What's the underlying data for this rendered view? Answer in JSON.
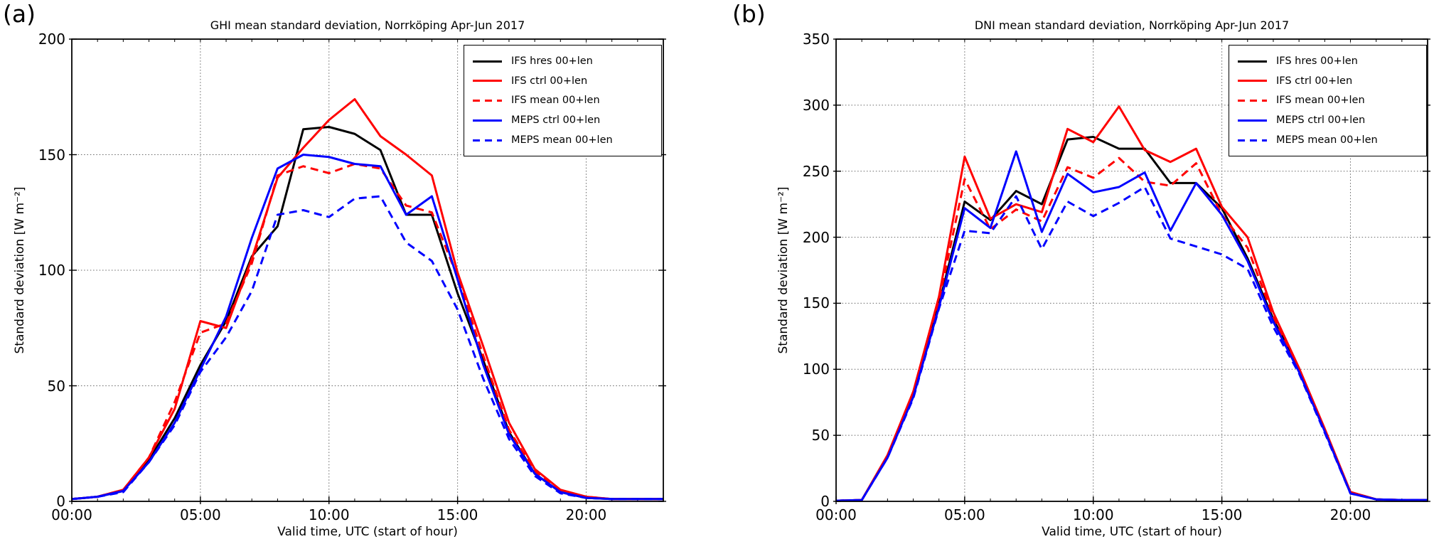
{
  "panels": {
    "a": "(a)",
    "b": "(b)"
  },
  "chart_data": [
    {
      "type": "line",
      "title": "GHI mean standard deviation, Norrköping Apr-Jun 2017",
      "xlabel": "Valid time, UTC (start of hour)",
      "ylabel": "Standard deviation [W m⁻²]",
      "x_hours": [
        0,
        1,
        2,
        3,
        4,
        5,
        6,
        7,
        8,
        9,
        10,
        11,
        12,
        13,
        14,
        15,
        16,
        17,
        18,
        19,
        20,
        21,
        22,
        23
      ],
      "xlim": [
        0,
        23
      ],
      "ylim": [
        0,
        200
      ],
      "yticks": [
        0,
        50,
        100,
        150,
        200
      ],
      "xticks": {
        "values": [
          0,
          5,
          10,
          15,
          20
        ],
        "labels": [
          "00:00",
          "05:00",
          "10:00",
          "15:00",
          "20:00"
        ]
      },
      "grid": true,
      "legend_position": "upper right",
      "series": [
        {
          "name": "IFS hres 00+len",
          "color": "#000000",
          "style": "solid",
          "values": [
            1,
            2,
            4.5,
            18,
            36,
            59,
            78,
            106,
            119,
            161,
            162,
            159,
            152,
            124,
            124,
            90,
            61,
            30,
            12,
            4,
            1.5,
            1,
            1,
            1
          ]
        },
        {
          "name": "IFS ctrl 00+len",
          "color": "#ff0000",
          "style": "solid",
          "values": [
            1,
            2,
            5,
            19,
            40,
            78,
            75,
            105,
            140,
            153,
            165,
            174,
            158,
            150,
            141,
            99,
            67,
            34,
            14,
            5,
            2,
            1,
            1,
            1
          ]
        },
        {
          "name": "IFS mean 00+len",
          "color": "#ff0000",
          "style": "dashed",
          "values": [
            1,
            2,
            5,
            19,
            43,
            73,
            77,
            103,
            141,
            145,
            142,
            146,
            144,
            128,
            125,
            97,
            63,
            31,
            13,
            4.5,
            2,
            1,
            1,
            1
          ]
        },
        {
          "name": "MEPS ctrl 00+len",
          "color": "#0000ff",
          "style": "solid",
          "values": [
            1,
            2,
            4.5,
            17,
            34,
            57,
            80,
            114,
            144,
            150,
            149,
            146,
            145,
            124,
            132,
            96,
            59,
            29,
            12,
            4,
            1.5,
            1,
            1,
            1
          ]
        },
        {
          "name": "MEPS mean 00+len",
          "color": "#0000ff",
          "style": "dashed",
          "values": [
            1,
            2,
            4,
            17,
            33,
            56,
            71,
            91,
            124,
            126,
            123,
            131,
            132,
            112,
            104,
            83,
            53,
            27,
            11,
            3.5,
            1.5,
            1,
            1,
            1
          ]
        }
      ]
    },
    {
      "type": "line",
      "title": "DNI mean standard deviation, Norrköping Apr-Jun 2017",
      "xlabel": "Valid time, UTC (start of hour)",
      "ylabel": "Standard deviation [W m⁻²]",
      "x_hours": [
        0,
        1,
        2,
        3,
        4,
        5,
        6,
        7,
        8,
        9,
        10,
        11,
        12,
        13,
        14,
        15,
        16,
        17,
        18,
        19,
        20,
        21,
        22,
        23
      ],
      "xlim": [
        0,
        23
      ],
      "ylim": [
        0,
        350
      ],
      "yticks": [
        0,
        50,
        100,
        150,
        200,
        250,
        300,
        350
      ],
      "xticks": {
        "values": [
          0,
          5,
          10,
          15,
          20
        ],
        "labels": [
          "00:00",
          "05:00",
          "10:00",
          "15:00",
          "20:00"
        ]
      },
      "grid": true,
      "legend_position": "upper right",
      "series": [
        {
          "name": "IFS hres 00+len",
          "color": "#000000",
          "style": "solid",
          "values": [
            0.5,
            1,
            34,
            80,
            149,
            227,
            213,
            235,
            225,
            274,
            276,
            267,
            267,
            241,
            241,
            222,
            184,
            138,
            100,
            54,
            7,
            1.5,
            1,
            1
          ]
        },
        {
          "name": "IFS ctrl 00+len",
          "color": "#ff0000",
          "style": "solid",
          "values": [
            0.5,
            1,
            35,
            83,
            155,
            261,
            214,
            225,
            219,
            282,
            272,
            299,
            266,
            257,
            267,
            223,
            200,
            143,
            101,
            55,
            7,
            1.5,
            1,
            1
          ]
        },
        {
          "name": "IFS mean 00+len",
          "color": "#ff0000",
          "style": "dashed",
          "values": [
            0.5,
            1,
            34,
            82,
            152,
            244,
            206,
            221,
            212,
            253,
            245,
            260,
            242,
            239,
            256,
            217,
            192,
            140,
            100,
            54,
            7,
            1.5,
            1,
            1
          ]
        },
        {
          "name": "MEPS ctrl 00+len",
          "color": "#0000ff",
          "style": "solid",
          "values": [
            0.5,
            1,
            33,
            79,
            147,
            222,
            207,
            265,
            204,
            248,
            234,
            238,
            249,
            205,
            241,
            217,
            182,
            136,
            98,
            53,
            6,
            1.5,
            1,
            1
          ]
        },
        {
          "name": "MEPS mean 00+len",
          "color": "#0000ff",
          "style": "dashed",
          "values": [
            0.5,
            1,
            33,
            78,
            146,
            205,
            203,
            231,
            191,
            227,
            216,
            226,
            238,
            199,
            193,
            187,
            176,
            132,
            97,
            52,
            6,
            1.5,
            1,
            1
          ]
        }
      ]
    }
  ]
}
